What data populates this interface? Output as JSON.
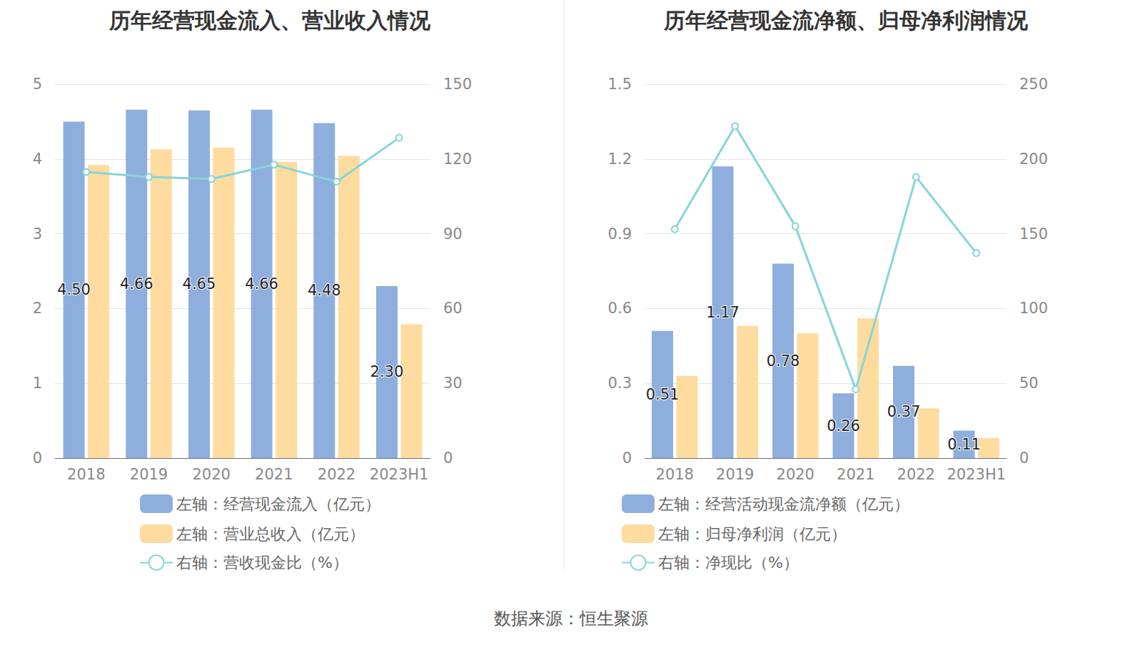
{
  "chart_data": [
    {
      "type": "bar",
      "title": "历年经营现金流入、营业收入情况",
      "categories": [
        "2018",
        "2019",
        "2020",
        "2021",
        "2022",
        "2023H1"
      ],
      "ylim": [
        0,
        5
      ],
      "yticks": [
        0,
        1,
        2,
        3,
        4,
        5
      ],
      "y2lim": [
        0,
        150
      ],
      "y2ticks": [
        0,
        30,
        60,
        90,
        120,
        150
      ],
      "grid": true,
      "legend": "bottom",
      "series": [
        {
          "name": "左轴：经营现金流入（亿元）",
          "type": "bar",
          "color": "#8eaedd",
          "values": [
            4.5,
            4.66,
            4.65,
            4.66,
            4.48,
            2.3
          ],
          "value_labels": [
            "4.50",
            "4.66",
            "4.65",
            "4.66",
            "4.48",
            "2.30"
          ],
          "data_labels": true
        },
        {
          "name": "左轴：营业总收入（亿元）",
          "type": "bar",
          "color": "#fedb9f",
          "values": [
            3.92,
            4.13,
            4.15,
            3.96,
            4.04,
            1.79
          ]
        },
        {
          "name": "右轴：营收现金比（%）",
          "type": "line",
          "color": "#86d5d8",
          "axis": "y2",
          "marker": "emptyCircle",
          "values": [
            114.8,
            112.8,
            112.0,
            117.7,
            110.9,
            128.5
          ]
        }
      ]
    },
    {
      "type": "bar",
      "title": "历年经营现金流净额、归母净利润情况",
      "categories": [
        "2018",
        "2019",
        "2020",
        "2021",
        "2022",
        "2023H1"
      ],
      "ylim": [
        0,
        1.5
      ],
      "yticks": [
        0,
        0.3,
        0.6,
        0.9,
        1.2,
        1.5
      ],
      "y2lim": [
        0,
        250
      ],
      "y2ticks": [
        0,
        50,
        100,
        150,
        200,
        250
      ],
      "grid": true,
      "legend": "bottom",
      "series": [
        {
          "name": "左轴：经营活动现金流净额（亿元）",
          "type": "bar",
          "color": "#8eaedd",
          "values": [
            0.51,
            1.17,
            0.78,
            0.26,
            0.37,
            0.11
          ],
          "data_labels": true
        },
        {
          "name": "左轴：归母净利润（亿元）",
          "type": "bar",
          "color": "#fedb9f",
          "values": [
            0.33,
            0.53,
            0.5,
            0.56,
            0.2,
            0.08
          ]
        },
        {
          "name": "右轴：净现比（%）",
          "type": "line",
          "color": "#86d5d8",
          "axis": "y2",
          "marker": "emptyCircle",
          "values": [
            153,
            222,
            155,
            46,
            188,
            137
          ]
        }
      ]
    }
  ],
  "source": "数据来源：恒生聚源"
}
